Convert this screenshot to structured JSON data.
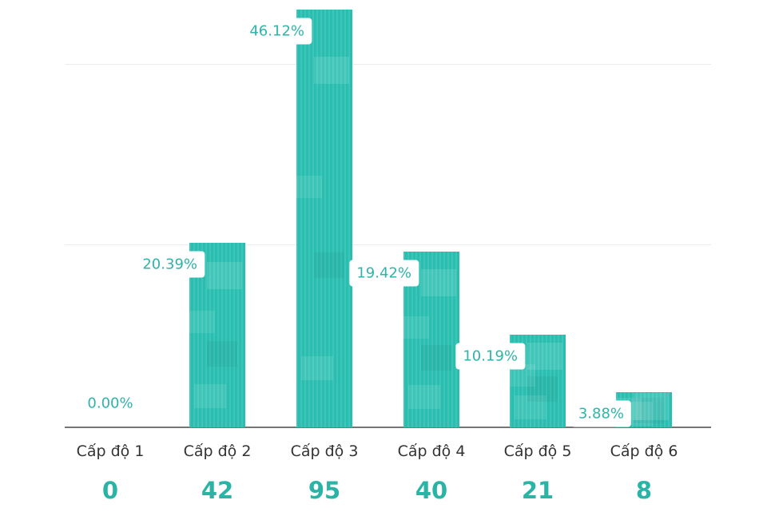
{
  "chart_data": {
    "type": "bar",
    "title": "",
    "xlabel": "",
    "ylabel": "",
    "categories": [
      "Cấp độ 1",
      "Cấp độ 2",
      "Cấp độ 3",
      "Cấp độ 4",
      "Cấp độ 5",
      "Cấp độ 6"
    ],
    "series": [
      {
        "name": "percent",
        "values": [
          0.0,
          20.39,
          46.12,
          19.42,
          10.19,
          3.88
        ]
      },
      {
        "name": "count",
        "values": [
          0,
          42,
          95,
          40,
          21,
          8
        ]
      }
    ],
    "percent_labels": [
      "0.00%",
      "20.39%",
      "46.12%",
      "19.42%",
      "10.19%",
      "3.88%"
    ],
    "count_labels": [
      "0",
      "42",
      "95",
      "40",
      "21",
      "8"
    ],
    "ylim": [
      0,
      47
    ],
    "gridlines_percent": [
      20,
      40
    ],
    "grid": "horizontal-only",
    "legend": "none",
    "colors": {
      "bar": "#29beb0",
      "percent_text": "#2eb4a8",
      "count_text": "#2bb3a6",
      "category_text": "#333333",
      "axis_line": "#757575",
      "gridline": "#ececec",
      "background": "#ffffff"
    }
  }
}
